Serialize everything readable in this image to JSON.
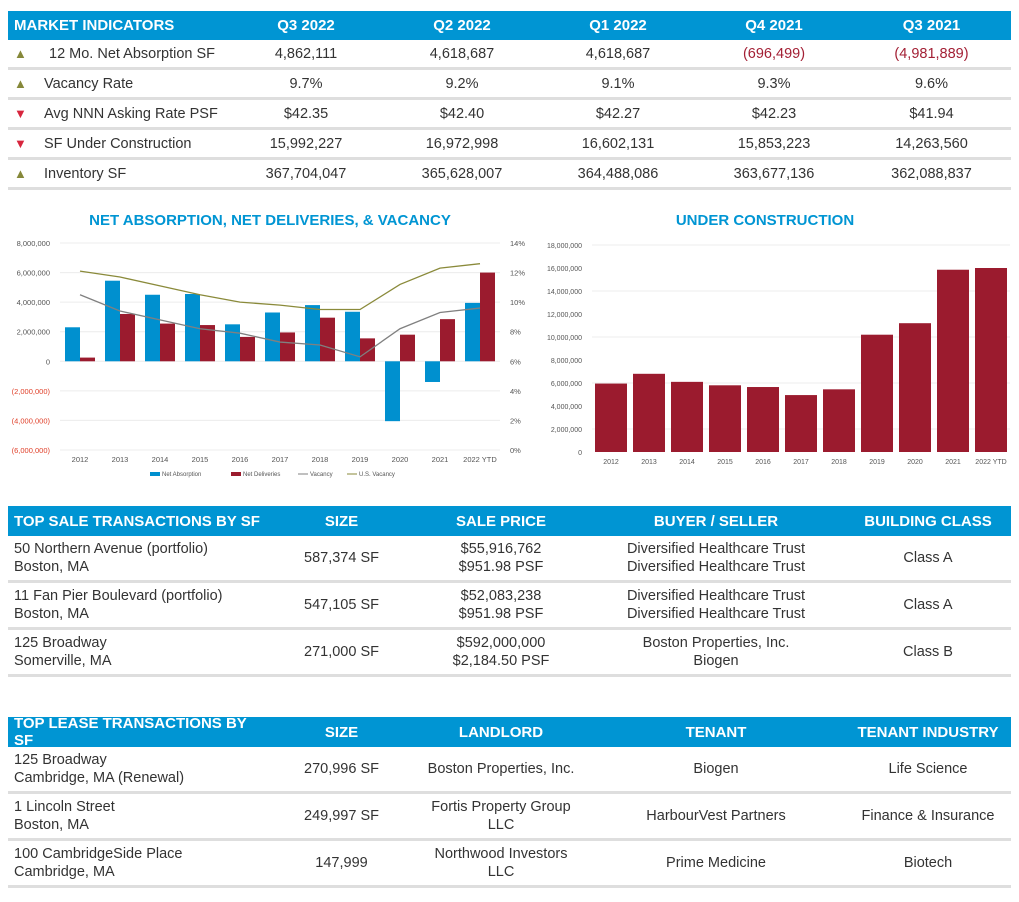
{
  "market_indicators": {
    "headers": [
      "MARKET INDICATORS",
      "Q3 2022",
      "Q2 2022",
      "Q1 2022",
      "Q4 2021",
      "Q3 2021"
    ],
    "rows": [
      {
        "trend": "up",
        "label": "12 Mo. Net Absorption SF",
        "values": [
          "4,862,111",
          "4,618,687",
          "4,618,687",
          "(696,499)",
          "(4,981,889)"
        ],
        "negative": [
          false,
          false,
          false,
          true,
          true
        ]
      },
      {
        "trend": "up",
        "label": "Vacancy Rate",
        "values": [
          "9.7%",
          "9.2%",
          "9.1%",
          "9.3%",
          "9.6%"
        ],
        "negative": [
          false,
          false,
          false,
          false,
          false
        ]
      },
      {
        "trend": "down",
        "label": "Avg NNN Asking Rate PSF",
        "values": [
          "$42.35",
          "$42.40",
          "$42.27",
          "$42.23",
          "$41.94"
        ],
        "negative": [
          false,
          false,
          false,
          false,
          false
        ]
      },
      {
        "trend": "down",
        "label": "SF Under Construction",
        "values": [
          "15,992,227",
          "16,972,998",
          "16,602,131",
          "15,853,223",
          "14,263,560"
        ],
        "negative": [
          false,
          false,
          false,
          false,
          false
        ]
      },
      {
        "trend": "up",
        "label": "Inventory SF",
        "values": [
          "367,704,047",
          "365,628,007",
          "364,488,086",
          "363,677,136",
          "362,088,837"
        ],
        "negative": [
          false,
          false,
          false,
          false,
          false
        ]
      }
    ],
    "trend_icons": {
      "up": "▲",
      "down": "▼"
    }
  },
  "chart_data": [
    {
      "type": "bar",
      "title": "NET ABSORPTION, NET DELIVERIES, & VACANCY",
      "categories": [
        "2012",
        "2013",
        "2014",
        "2015",
        "2016",
        "2017",
        "2018",
        "2019",
        "2020",
        "2021",
        "2022 YTD"
      ],
      "series": [
        {
          "name": "Net Absorption",
          "type": "bar",
          "axis": "left",
          "color": "#0090cf",
          "values": [
            2300000,
            5450000,
            4500000,
            4550000,
            2500000,
            3300000,
            3800000,
            3350000,
            -4050000,
            -1400000,
            3950000
          ]
        },
        {
          "name": "Net Deliveries",
          "type": "bar",
          "axis": "left",
          "color": "#9b1b2e",
          "values": [
            250000,
            3200000,
            2550000,
            2450000,
            1650000,
            1950000,
            2950000,
            1550000,
            1800000,
            2850000,
            6000000
          ]
        },
        {
          "name": "Vacancy",
          "type": "line",
          "axis": "right",
          "color": "#808080",
          "values": [
            10.5,
            9.4,
            8.8,
            8.2,
            7.9,
            7.3,
            7.1,
            6.3,
            8.2,
            9.3,
            9.6
          ]
        },
        {
          "name": "U.S. Vacancy",
          "type": "line",
          "axis": "right",
          "color": "#8a8a3a",
          "values": [
            12.1,
            11.7,
            11.1,
            10.5,
            10.0,
            9.8,
            9.5,
            9.5,
            11.2,
            12.3,
            12.6
          ]
        }
      ],
      "y_left": {
        "min": -6000000,
        "max": 8000000,
        "ticks": [
          "8,000,000",
          "6,000,000",
          "4,000,000",
          "2,000,000",
          "0",
          "(2,000,000)",
          "(4,000,000)",
          "(6,000,000)"
        ]
      },
      "y_right": {
        "min": 0,
        "max": 14,
        "ticks": [
          "14%",
          "12%",
          "10%",
          "8%",
          "6%",
          "4%",
          "2%",
          "0%"
        ]
      },
      "legend": [
        "Net Absorption",
        "Net Deliveries",
        "Vacancy",
        "U.S. Vacancy"
      ],
      "legend_position": "bottom",
      "grid": true
    },
    {
      "type": "bar",
      "title": "UNDER CONSTRUCTION",
      "categories": [
        "2012",
        "2013",
        "2014",
        "2015",
        "2016",
        "2017",
        "2018",
        "2019",
        "2020",
        "2021",
        "2022 YTD"
      ],
      "series": [
        {
          "name": "Under Construction",
          "color": "#9b1b2e",
          "values": [
            5950000,
            6800000,
            6100000,
            5800000,
            5650000,
            4950000,
            5450000,
            10200000,
            11200000,
            15850000,
            16000000
          ]
        }
      ],
      "y": {
        "min": 0,
        "max": 18000000,
        "ticks": [
          "18,000,000",
          "16,000,000",
          "14,000,000",
          "12,000,000",
          "10,000,000",
          "8,000,000",
          "6,000,000",
          "4,000,000",
          "2,000,000",
          "0"
        ]
      },
      "grid": true
    }
  ],
  "sale_transactions": {
    "headers": [
      "TOP SALE TRANSACTIONS BY SF",
      "SIZE",
      "SALE PRICE",
      "BUYER / SELLER",
      "BUILDING CLASS"
    ],
    "rows": [
      {
        "property": [
          "50 Northern Avenue (portfolio)",
          "Boston, MA"
        ],
        "size": "587,374 SF",
        "price": [
          "$55,916,762",
          "$951.98 PSF"
        ],
        "parties": [
          "Diversified Healthcare Trust",
          "Diversified Healthcare Trust"
        ],
        "class": "Class A"
      },
      {
        "property": [
          "11 Fan Pier Boulevard (portfolio)",
          "Boston, MA"
        ],
        "size": "547,105 SF",
        "price": [
          "$52,083,238",
          "$951.98 PSF"
        ],
        "parties": [
          "Diversified Healthcare Trust",
          "Diversified Healthcare Trust"
        ],
        "class": "Class A"
      },
      {
        "property": [
          "125 Broadway",
          "Somerville, MA"
        ],
        "size": "271,000 SF",
        "price": [
          "$592,000,000",
          "$2,184.50 PSF"
        ],
        "parties": [
          "Boston Properties, Inc.",
          "Biogen"
        ],
        "class": "Class B"
      }
    ]
  },
  "lease_transactions": {
    "headers": [
      "TOP LEASE TRANSACTIONS BY SF",
      "SIZE",
      "LANDLORD",
      "TENANT",
      "TENANT INDUSTRY"
    ],
    "rows": [
      {
        "property": [
          "125 Broadway",
          "Cambridge, MA (Renewal)"
        ],
        "size": "270,996 SF",
        "landlord": [
          "Boston Properties, Inc."
        ],
        "tenant": "Biogen",
        "industry": "Life Science"
      },
      {
        "property": [
          "1 Lincoln Street",
          "Boston, MA"
        ],
        "size": "249,997 SF",
        "landlord": [
          "Fortis Property Group",
          "LLC"
        ],
        "tenant": "HarbourVest Partners",
        "industry": "Finance & Insurance"
      },
      {
        "property": [
          "100 CambridgeSide Place",
          "Cambridge, MA"
        ],
        "size": "147,999",
        "landlord": [
          "Northwood Investors",
          "LLC"
        ],
        "tenant": "Prime Medicine",
        "industry": "Biotech"
      }
    ]
  }
}
